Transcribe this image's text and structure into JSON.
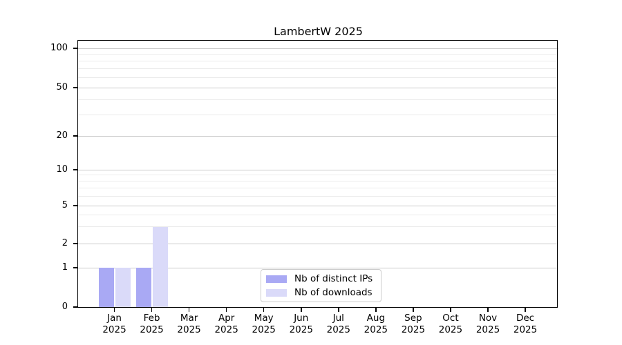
{
  "chart_data": {
    "type": "bar",
    "title": "LambertW 2025",
    "categories": [
      "Jan",
      "Feb",
      "Mar",
      "Apr",
      "May",
      "Jun",
      "Jul",
      "Aug",
      "Sep",
      "Oct",
      "Nov",
      "Dec"
    ],
    "year_label": "2025",
    "series": [
      {
        "name": "Nb of distinct IPs",
        "color": "#a9a9f4",
        "values": [
          1,
          1,
          0,
          0,
          0,
          0,
          0,
          0,
          0,
          0,
          0,
          0
        ]
      },
      {
        "name": "Nb of downloads",
        "color": "#dadaf9",
        "values": [
          1,
          3,
          0,
          0,
          0,
          0,
          0,
          0,
          0,
          0,
          0,
          0
        ]
      }
    ],
    "yticks": [
      0,
      1,
      2,
      5,
      10,
      20,
      50,
      100
    ],
    "minor_yticks": [
      3,
      4,
      6,
      7,
      8,
      9,
      30,
      40,
      60,
      70,
      80,
      90
    ],
    "ylim": [
      0,
      115
    ],
    "yscale": "symlog",
    "grid": "horizontal-only",
    "legend_position": "lower center",
    "colors": {
      "major_grid": "#c9c9c9",
      "minor_grid": "#ebebeb",
      "axis": "#000000",
      "background": "#ffffff"
    }
  }
}
